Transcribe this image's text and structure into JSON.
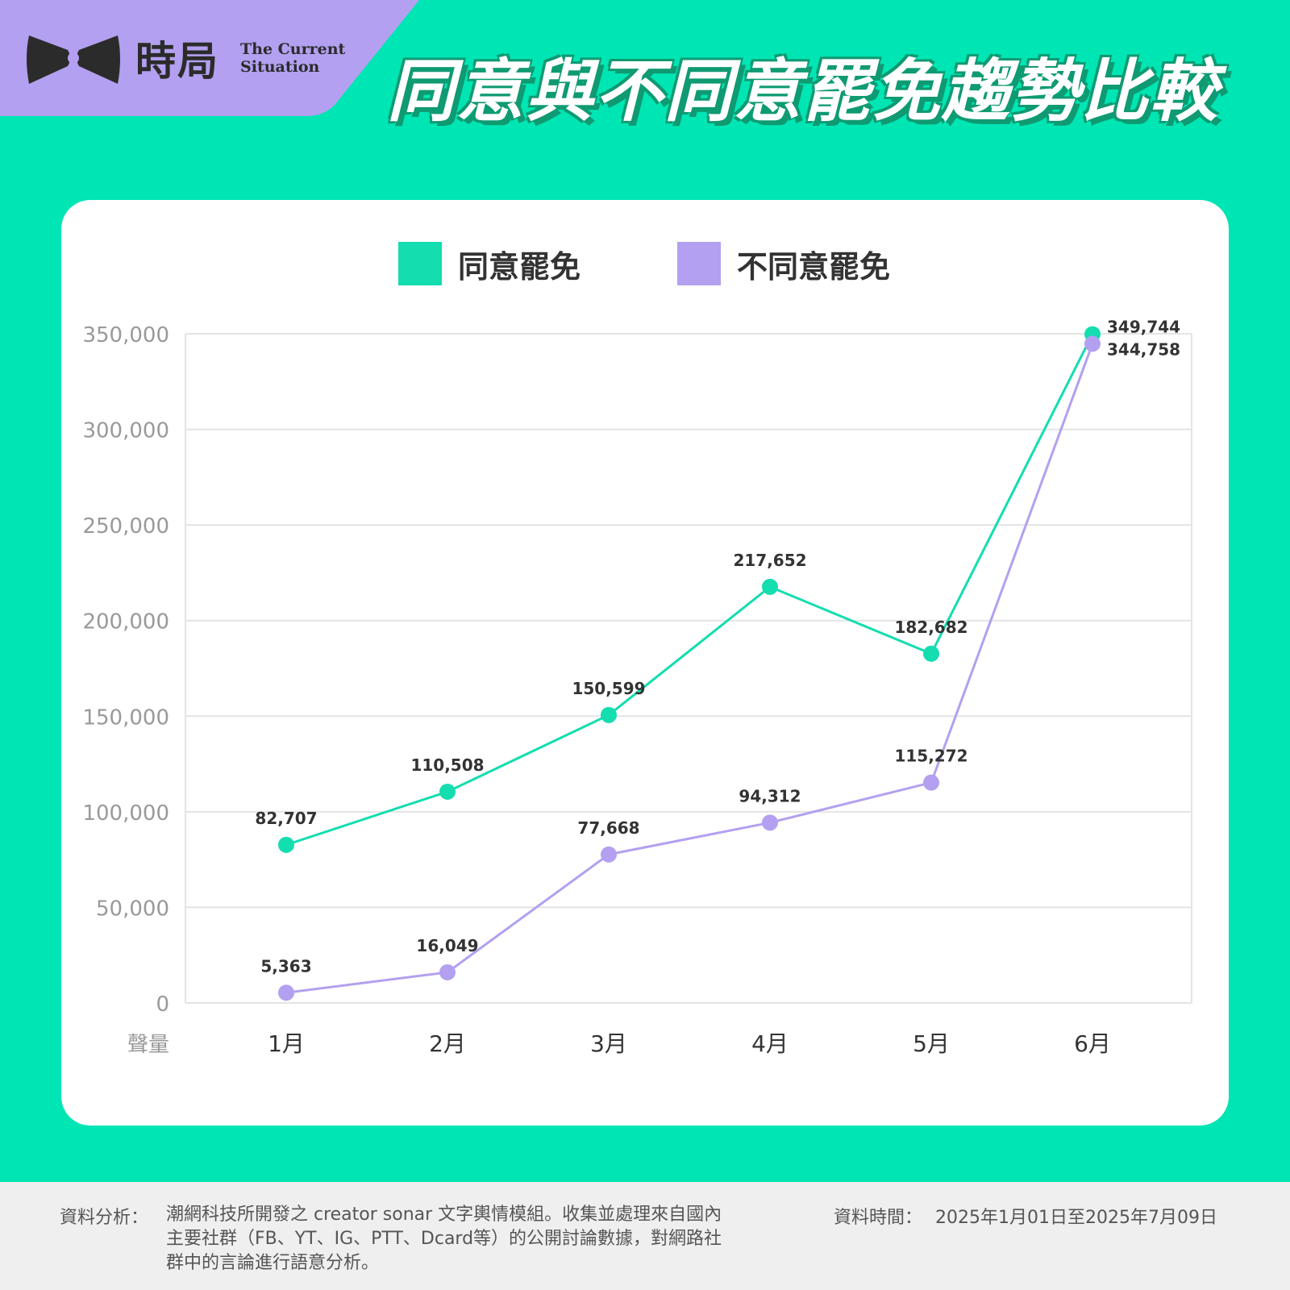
{
  "brand": {
    "name_zh": "時局",
    "name_en_line1": "The Current",
    "name_en_line2": "Situation"
  },
  "headline": "同意與不同意罷免趨勢比較",
  "colors": {
    "background": "#00E5B4",
    "agree": "#14DDB0",
    "disagree": "#B3A0F0",
    "brand_tab": "#B3A0F0"
  },
  "chart_data": {
    "type": "line",
    "categories": [
      "1月",
      "2月",
      "3月",
      "4月",
      "5月",
      "6月"
    ],
    "series": [
      {
        "name": "同意罷免",
        "values": [
          82707,
          110508,
          150599,
          217652,
          182682,
          349744
        ]
      },
      {
        "name": "不同意罷免",
        "values": [
          5363,
          16049,
          77668,
          94312,
          115272,
          344758
        ]
      }
    ],
    "ylabel": "聲量",
    "ylim": [
      0,
      350000
    ],
    "yticks": [
      "0",
      "50,000",
      "100,000",
      "150,000",
      "200,000",
      "250,000",
      "300,000",
      "350,000"
    ],
    "data_labels": [
      [
        "82,707",
        "110,508",
        "150,599",
        "217,652",
        "182,682",
        "349,744"
      ],
      [
        "5,363",
        "16,049",
        "77,668",
        "94,312",
        "115,272",
        "344,758"
      ]
    ],
    "grid": true,
    "legend": "top-center"
  },
  "footer": {
    "source_label": "資料分析：",
    "source_text": "潮網科技所開發之 creator sonar 文字輿情模組。收集並處理來自國內主要社群（FB、YT、IG、PTT、Dcard等）的公開討論數據，對網路社群中的言論進行語意分析。",
    "date_label": "資料時間：",
    "date_text": "2025年1月01日至2025年7月09日"
  }
}
